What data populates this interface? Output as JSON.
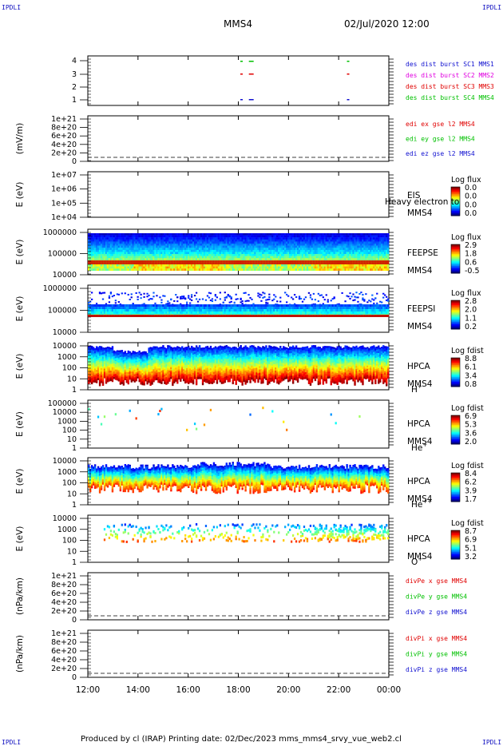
{
  "corner_label": "IPDLI",
  "header": {
    "left": "MMS4",
    "right": "02/Jul/2020 12:00"
  },
  "footer": "Produced by cl (IRAP)   Printing date: 02/Dec/2023   mms_mms4_srvy_vue_web2.cl",
  "time_axis": {
    "ticks": [
      "12:00",
      "14:00",
      "16:00",
      "18:00",
      "20:00",
      "22:00",
      "00:00"
    ]
  },
  "colors": {
    "red": "#e00000",
    "green": "#00c000",
    "blue": "#0000d0",
    "magenta": "#e000e0",
    "dash": "#000000"
  },
  "panels": [
    {
      "id": "burst",
      "ylabel": "",
      "yticks": [
        "4",
        "3",
        "2",
        "1"
      ],
      "legend": [
        {
          "text": "des dist burst SC1 MMS1",
          "color": "#1010d0"
        },
        {
          "text": "des dist burst SC2 MMS2",
          "color": "#e000e0"
        },
        {
          "text": "des dist burst SC3 MMS3",
          "color": "#e00000"
        },
        {
          "text": "des dist burst SC4 MMS4",
          "color": "#00c000"
        }
      ]
    },
    {
      "id": "edi",
      "ylabel": "(mV/m)",
      "yticks": [
        "1e+21",
        "8e+20",
        "6e+20",
        "4e+20",
        "2e+20",
        "0"
      ],
      "legend": [
        {
          "text": "edi ex gse l2 MMS4",
          "color": "#e00000"
        },
        {
          "text": "edi ey gse l2 MMS4",
          "color": "#00c000"
        },
        {
          "text": "edi ez gse l2 MMS4",
          "color": "#1010d0"
        }
      ]
    },
    {
      "id": "eis",
      "ylabel": "E (eV)",
      "yticks": [
        "1e+07",
        "1e+06",
        "1e+05",
        "1e+04"
      ],
      "inst": [
        "EIS",
        "MMS4"
      ],
      "overlay": "Heavy electron to",
      "cbar_title": "Log flux",
      "cbar_ticks": [
        "0.0",
        "0.0",
        "0.0",
        "0.0"
      ]
    },
    {
      "id": "feepse",
      "ylabel": "E (eV)",
      "yticks": [
        "1000000",
        "100000",
        "10000"
      ],
      "inst": [
        "FEEPSE",
        "MMS4"
      ],
      "cbar_title": "Log flux",
      "cbar_ticks": [
        "2.9",
        "1.8",
        "0.6",
        "-0.5"
      ]
    },
    {
      "id": "feepsi",
      "ylabel": "E (eV)",
      "yticks": [
        "1000000",
        "100000",
        "10000"
      ],
      "inst": [
        "FEEPSI",
        "MMS4"
      ],
      "cbar_title": "Log flux",
      "cbar_ticks": [
        "2.8",
        "2.0",
        "1.1",
        "0.2"
      ]
    },
    {
      "id": "hpca_h",
      "ylabel": "E (eV)",
      "yticks": [
        "10000",
        "1000",
        "100",
        "10",
        "1"
      ],
      "inst": [
        "HPCA",
        "MMS4"
      ],
      "species": "H",
      "species_sup": "+",
      "cbar_title": "Log fdist",
      "cbar_ticks": [
        "8.8",
        "6.1",
        "3.4",
        "0.8"
      ]
    },
    {
      "id": "hpca_he",
      "ylabel": "E (eV)",
      "yticks": [
        "100000",
        "10000",
        "1000",
        "100",
        "10",
        "1"
      ],
      "inst": [
        "HPCA",
        "MMS4"
      ],
      "species": "He",
      "species_sup": "+",
      "cbar_title": "Log fdist",
      "cbar_ticks": [
        "6.9",
        "5.3",
        "3.6",
        "2.0"
      ]
    },
    {
      "id": "hpca_hepp",
      "ylabel": "E (eV)",
      "yticks": [
        "10000",
        "1000",
        "100",
        "10",
        "1"
      ],
      "inst": [
        "HPCA",
        "MMS4"
      ],
      "species": "He",
      "species_sup": "++",
      "cbar_title": "Log fdist",
      "cbar_ticks": [
        "8.4",
        "6.2",
        "3.9",
        "1.7"
      ]
    },
    {
      "id": "hpca_o",
      "ylabel": "E (eV)",
      "yticks": [
        "10000",
        "1000",
        "100",
        "10",
        "1"
      ],
      "inst": [
        "HPCA",
        "MMS4"
      ],
      "species": "O",
      "species_sup": "+",
      "cbar_title": "Log fdist",
      "cbar_ticks": [
        "8.7",
        "6.9",
        "5.1",
        "3.2"
      ]
    },
    {
      "id": "divpe",
      "ylabel": "(nPa/km)",
      "yticks": [
        "1e+21",
        "8e+20",
        "6e+20",
        "4e+20",
        "2e+20",
        "0"
      ],
      "legend": [
        {
          "text": "divPe x gse MMS4",
          "color": "#e00000"
        },
        {
          "text": "divPe y gse MMS4",
          "color": "#00c000"
        },
        {
          "text": "divPe z gse MMS4",
          "color": "#1010d0"
        }
      ]
    },
    {
      "id": "divpi",
      "ylabel": "(nPa/km)",
      "yticks": [
        "1e+21",
        "8e+20",
        "6e+20",
        "4e+20",
        "2e+20",
        "0"
      ],
      "legend": [
        {
          "text": "divPi x gse MMS4",
          "color": "#e00000"
        },
        {
          "text": "divPi y gse MMS4",
          "color": "#00c000"
        },
        {
          "text": "divPi z gse MMS4",
          "color": "#1010d0"
        }
      ]
    }
  ],
  "chart_data": {
    "type": "heatmap",
    "title": "MMS4 02/Jul/2020 12:00",
    "x_range": [
      "12:00",
      "00:00"
    ],
    "burst_intervals": [
      {
        "spacecraft": 4,
        "color": "green",
        "times": [
          "18:05",
          "18:25",
          "22:20"
        ]
      },
      {
        "spacecraft": 3,
        "color": "red",
        "times": [
          "18:05",
          "18:25",
          "22:20"
        ]
      },
      {
        "spacecraft": 1,
        "color": "blue",
        "times": [
          "18:05",
          "18:25",
          "22:20"
        ]
      }
    ],
    "spectrograms": [
      {
        "name": "FEEPSE",
        "ylim_eV": [
          10000,
          1000000
        ],
        "log_flux_range": [
          -0.5,
          2.9
        ]
      },
      {
        "name": "FEEPSI",
        "ylim_eV": [
          10000,
          1000000
        ],
        "log_flux_range": [
          0.2,
          2.8
        ]
      },
      {
        "name": "HPCA H+",
        "ylim_eV": [
          1,
          10000
        ],
        "log_fdist_range": [
          0.8,
          8.8
        ]
      },
      {
        "name": "HPCA He+",
        "ylim_eV": [
          1,
          100000
        ],
        "log_fdist_range": [
          2.0,
          6.9
        ]
      },
      {
        "name": "HPCA He++",
        "ylim_eV": [
          1,
          10000
        ],
        "log_fdist_range": [
          1.7,
          8.4
        ]
      },
      {
        "name": "HPCA O+",
        "ylim_eV": [
          1,
          10000
        ],
        "log_fdist_range": [
          3.2,
          8.7
        ]
      }
    ]
  }
}
